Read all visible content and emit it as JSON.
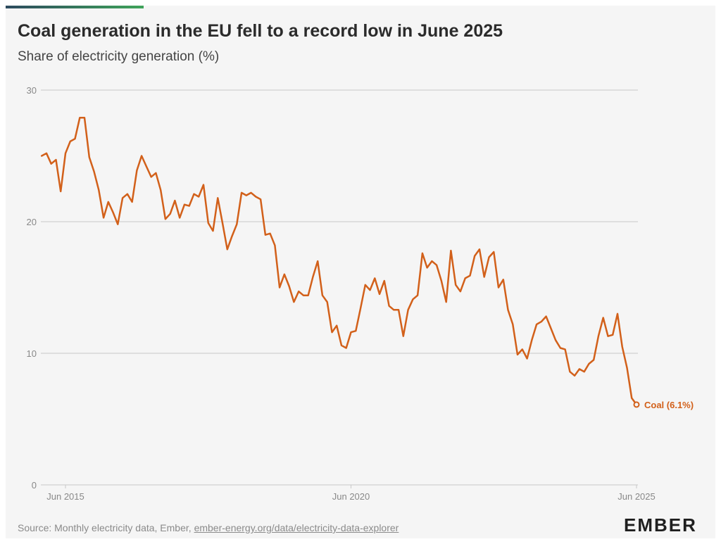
{
  "header": {
    "title": "Coal generation in the EU fell to a record low in June 2025",
    "subtitle": "Share of electricity generation (%)"
  },
  "footer": {
    "source_prefix": "Source: Monthly electricity data, Ember, ",
    "source_link": "ember-energy.org/data/electricity-data-explorer",
    "logo": "EMBER"
  },
  "colors": {
    "accent_gradient": [
      "#2c4a5e",
      "#3fa35a"
    ],
    "series": "#d2601a",
    "grid": "#c8c8c8",
    "axis_text": "#888888",
    "background": "#f5f5f5"
  },
  "chart_data": {
    "type": "line",
    "title": "Coal generation in the EU fell to a record low in June 2025",
    "ylabel": "Share of electricity generation (%)",
    "ylim": [
      0,
      30
    ],
    "yticks": [
      0,
      10,
      20,
      30
    ],
    "x_start": "2015-01",
    "x_end": "2025-06",
    "xticks": [
      {
        "label": "Jun 2015",
        "date": "2015-06"
      },
      {
        "label": "Jun 2020",
        "date": "2020-06"
      },
      {
        "label": "Jun 2025",
        "date": "2025-06"
      }
    ],
    "grid": true,
    "series": [
      {
        "name": "Coal",
        "end_label": "Coal (6.1%)",
        "x": [
          "2015-01",
          "2015-02",
          "2015-03",
          "2015-04",
          "2015-05",
          "2015-06",
          "2015-07",
          "2015-08",
          "2015-09",
          "2015-10",
          "2015-11",
          "2015-12",
          "2016-01",
          "2016-02",
          "2016-03",
          "2016-04",
          "2016-05",
          "2016-06",
          "2016-07",
          "2016-08",
          "2016-09",
          "2016-10",
          "2016-11",
          "2016-12",
          "2017-01",
          "2017-02",
          "2017-03",
          "2017-04",
          "2017-05",
          "2017-06",
          "2017-07",
          "2017-08",
          "2017-09",
          "2017-10",
          "2017-11",
          "2017-12",
          "2018-01",
          "2018-02",
          "2018-03",
          "2018-04",
          "2018-05",
          "2018-06",
          "2018-07",
          "2018-08",
          "2018-09",
          "2018-10",
          "2018-11",
          "2018-12",
          "2019-01",
          "2019-02",
          "2019-03",
          "2019-04",
          "2019-05",
          "2019-06",
          "2019-07",
          "2019-08",
          "2019-09",
          "2019-10",
          "2019-11",
          "2019-12",
          "2020-01",
          "2020-02",
          "2020-03",
          "2020-04",
          "2020-05",
          "2020-06",
          "2020-07",
          "2020-08",
          "2020-09",
          "2020-10",
          "2020-11",
          "2020-12",
          "2021-01",
          "2021-02",
          "2021-03",
          "2021-04",
          "2021-05",
          "2021-06",
          "2021-07",
          "2021-08",
          "2021-09",
          "2021-10",
          "2021-11",
          "2021-12",
          "2022-01",
          "2022-02",
          "2022-03",
          "2022-04",
          "2022-05",
          "2022-06",
          "2022-07",
          "2022-08",
          "2022-09",
          "2022-10",
          "2022-11",
          "2022-12",
          "2023-01",
          "2023-02",
          "2023-03",
          "2023-04",
          "2023-05",
          "2023-06",
          "2023-07",
          "2023-08",
          "2023-09",
          "2023-10",
          "2023-11",
          "2023-12",
          "2024-01",
          "2024-02",
          "2024-03",
          "2024-04",
          "2024-05",
          "2024-06",
          "2024-07",
          "2024-08",
          "2024-09",
          "2024-10",
          "2024-11",
          "2024-12",
          "2025-01",
          "2025-02",
          "2025-03",
          "2025-04",
          "2025-05",
          "2025-06"
        ],
        "values": [
          25.0,
          25.2,
          24.4,
          24.7,
          22.3,
          25.2,
          26.1,
          26.3,
          27.9,
          27.9,
          24.9,
          23.8,
          22.4,
          20.3,
          21.5,
          20.7,
          19.8,
          21.8,
          22.1,
          21.5,
          23.9,
          25.0,
          24.2,
          23.4,
          23.7,
          22.4,
          20.2,
          20.6,
          21.6,
          20.3,
          21.3,
          21.2,
          22.1,
          21.9,
          22.8,
          19.9,
          19.3,
          21.8,
          19.9,
          17.9,
          18.9,
          19.8,
          22.2,
          22.0,
          22.2,
          21.9,
          21.7,
          19.0,
          19.1,
          18.2,
          15.0,
          16.0,
          15.1,
          13.9,
          14.7,
          14.4,
          14.4,
          15.8,
          17.0,
          14.4,
          13.9,
          11.6,
          12.1,
          10.6,
          10.4,
          11.6,
          11.7,
          13.4,
          15.2,
          14.8,
          15.7,
          14.5,
          15.5,
          13.6,
          13.3,
          13.3,
          11.3,
          13.3,
          14.1,
          14.4,
          17.6,
          16.5,
          17.0,
          16.7,
          15.5,
          13.9,
          17.8,
          15.2,
          14.7,
          15.7,
          15.9,
          17.4,
          17.9,
          15.8,
          17.3,
          17.7,
          15.0,
          15.6,
          13.3,
          12.2,
          9.9,
          10.3,
          9.6,
          11.0,
          12.2,
          12.4,
          12.8,
          11.9,
          11.0,
          10.4,
          10.3,
          8.6,
          8.3,
          8.8,
          8.6,
          9.2,
          9.5,
          11.3,
          12.7,
          11.3,
          11.4,
          13.0,
          10.5,
          8.9,
          6.6,
          6.1
        ]
      }
    ]
  }
}
